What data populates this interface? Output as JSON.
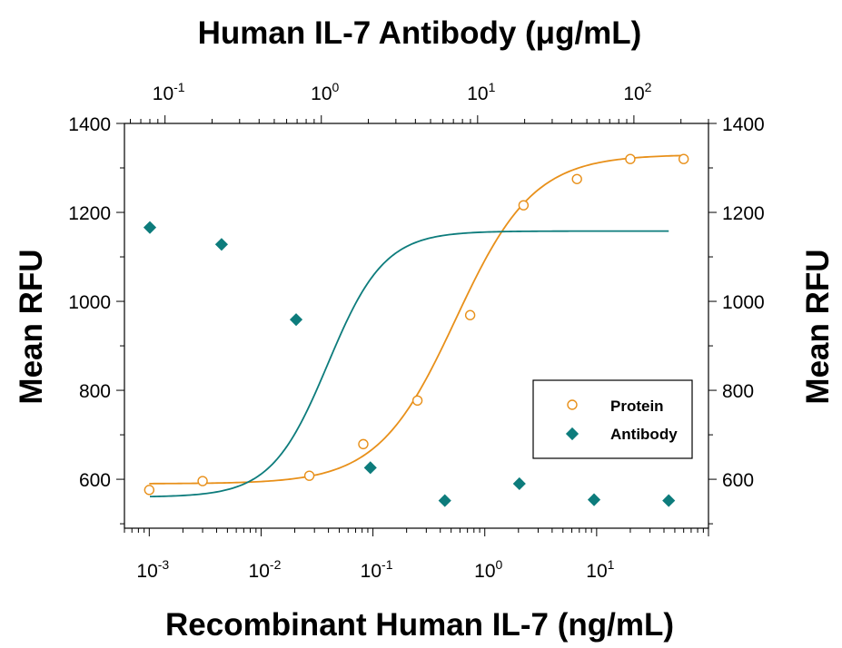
{
  "chart_data": {
    "type": "scatter",
    "title": "Human IL-7 Antibody (μg/mL)",
    "xlabel": "Recombinant Human IL-7 (ng/mL)",
    "ylabel": "Mean RFU",
    "ylabel_right": "Mean RFU",
    "x_scale": "log",
    "x_bottom": {
      "lim": [
        0.0006,
        100
      ],
      "ticks": [
        {
          "base": "10",
          "exp": "-3",
          "value": 0.001
        },
        {
          "base": "10",
          "exp": "-2",
          "value": 0.01
        },
        {
          "base": "10",
          "exp": "-1",
          "value": 0.1
        },
        {
          "base": "10",
          "exp": "0",
          "value": 1
        },
        {
          "base": "10",
          "exp": "1",
          "value": 10
        }
      ]
    },
    "x_top": {
      "lim": [
        0.055,
        300
      ],
      "ticks": [
        {
          "base": "10",
          "exp": "-1",
          "value": 0.1
        },
        {
          "base": "10",
          "exp": "0",
          "value": 1
        },
        {
          "base": "10",
          "exp": "1",
          "value": 10
        },
        {
          "base": "10",
          "exp": "2",
          "value": 100
        }
      ]
    },
    "ylim": [
      490,
      1400
    ],
    "yticks": [
      "600",
      "800",
      "1000",
      "1200",
      "1400"
    ],
    "series": [
      {
        "name": "Protein",
        "axis": "bottom",
        "marker": "open-circle",
        "color": "#E8901A",
        "x": [
          0.001,
          0.003,
          0.027,
          0.082,
          0.25,
          0.74,
          2.22,
          6.67,
          20,
          60
        ],
        "y": [
          576,
          596,
          608,
          679,
          777,
          969,
          1216,
          1275,
          1320,
          1320
        ],
        "fit": {
          "bottom": 590,
          "top": 1330,
          "ec50": 0.55,
          "hill": 1.25
        }
      },
      {
        "name": "Antibody",
        "axis": "top",
        "marker": "filled-diamond",
        "color": "#0D7C7C",
        "x": [
          0.08,
          0.23,
          0.69,
          2.06,
          6.17,
          18.5,
          55.6,
          167
        ],
        "y": [
          1166,
          1128,
          959,
          626,
          552,
          590,
          554,
          552
        ],
        "fit": {
          "bottom": 560,
          "top": 1158,
          "ec50": 1.1,
          "hill": 2.4
        }
      }
    ],
    "legend": {
      "placement": "lower-right",
      "entries": [
        "Protein",
        "Antibody"
      ]
    },
    "grid": false
  }
}
